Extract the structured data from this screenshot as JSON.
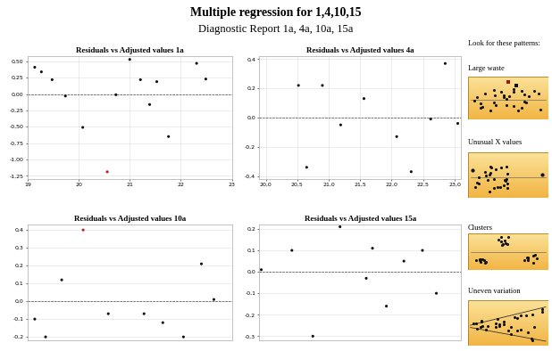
{
  "title": "Multiple regression for 1,4,10,15",
  "subtitle": "Diagnostic Report 1a, 4a, 10a, 15a",
  "chart_data": [
    {
      "type": "scatter",
      "title": "Residuals vs Adjusted values 1a",
      "x": [
        19.14,
        19.27,
        19.48,
        19.74,
        20.08,
        20.56,
        20.73,
        21.0,
        21.21,
        21.39,
        21.53,
        21.76,
        22.31,
        22.49
      ],
      "values": [
        0.41,
        0.34,
        0.22,
        -0.03,
        -0.51,
        -1.19,
        -0.01,
        0.53,
        0.22,
        -0.16,
        0.19,
        -0.65,
        0.47,
        0.23
      ],
      "colors": [
        "#111111",
        "#111111",
        "#111111",
        "#111111",
        "#111111",
        "#b22222",
        "#111111",
        "#111111",
        "#111111",
        "#111111",
        "#111111",
        "#111111",
        "#111111",
        "#111111"
      ],
      "xlim": [
        19,
        23
      ],
      "ylim": [
        -1.3,
        0.58
      ],
      "xticks": [
        19,
        20,
        21,
        22,
        23
      ],
      "yticks": [
        {
          "value": 0.5,
          "label": "0,50"
        },
        {
          "value": 0.25,
          "label": "0,25"
        },
        {
          "value": 0.0,
          "label": "0,00"
        },
        {
          "value": -0.25,
          "label": "-0,25"
        },
        {
          "value": -0.5,
          "label": "-0,50"
        },
        {
          "value": -0.75,
          "label": "-0,75"
        },
        {
          "value": -1.0,
          "label": "-1,00"
        },
        {
          "value": -1.25,
          "label": "-1,25"
        }
      ],
      "grid": true,
      "hline": 0
    },
    {
      "type": "scatter",
      "title": "Residuals vs Adjusted values 4a",
      "x": [
        20.52,
        20.65,
        20.9,
        21.19,
        21.56,
        22.08,
        22.31,
        22.62,
        22.85,
        23.05
      ],
      "values": [
        0.22,
        -0.34,
        0.22,
        -0.05,
        0.13,
        -0.13,
        -0.37,
        -0.01,
        0.37,
        -0.04
      ],
      "colors": [
        "#111111",
        "#111111",
        "#111111",
        "#111111",
        "#111111",
        "#111111",
        "#111111",
        "#111111",
        "#111111",
        "#111111"
      ],
      "xlim": [
        19.9,
        23.1
      ],
      "ylim": [
        -0.42,
        0.42
      ],
      "xticks": [
        {
          "value": 20.0,
          "label": "20,0"
        },
        {
          "value": 20.5,
          "label": "20,5"
        },
        {
          "value": 21.0,
          "label": "21,0"
        },
        {
          "value": 21.5,
          "label": "21,5"
        },
        {
          "value": 22.0,
          "label": "22,0"
        },
        {
          "value": 22.5,
          "label": "22,5"
        },
        {
          "value": 23.0,
          "label": "23,0"
        }
      ],
      "yticks": [
        {
          "value": 0.4,
          "label": "0,4"
        },
        {
          "value": 0.2,
          "label": "0,2"
        },
        {
          "value": 0.0,
          "label": "0,0"
        },
        {
          "value": -0.2,
          "label": "-0,2"
        },
        {
          "value": -0.4,
          "label": "-0,4"
        }
      ],
      "grid": true,
      "hline": 0
    },
    {
      "type": "scatter",
      "title": "Residuals vs Adjusted values 10a",
      "x": [
        0.35,
        0.88,
        1.67,
        2.72,
        3.95,
        5.7,
        6.62,
        7.63,
        8.51,
        9.12
      ],
      "values": [
        -0.1,
        -0.2,
        0.12,
        0.4,
        -0.07,
        -0.07,
        -0.12,
        -0.2,
        0.21,
        0.01
      ],
      "colors": [
        "#111111",
        "#111111",
        "#111111",
        "#b22222",
        "#111111",
        "#111111",
        "#111111",
        "#111111",
        "#111111",
        "#111111"
      ],
      "xlim": [
        0,
        10
      ],
      "ylim": [
        -0.22,
        0.43
      ],
      "yticks": [
        {
          "value": 0.4,
          "label": "0,4"
        },
        {
          "value": 0.3,
          "label": "0,3"
        },
        {
          "value": 0.2,
          "label": "0,2"
        },
        {
          "value": 0.1,
          "label": "0,1"
        },
        {
          "value": 0.0,
          "label": "0,0"
        },
        {
          "value": -0.1,
          "label": "-0,1"
        },
        {
          "value": -0.2,
          "label": "-0,2"
        }
      ],
      "tick_labels": "y",
      "grid": true,
      "hline": 0
    },
    {
      "type": "scatter",
      "title": "Residuals vs Adjusted values 15a",
      "x": [
        0.09,
        1.61,
        2.65,
        4.0,
        5.3,
        5.61,
        6.3,
        7.17,
        8.09,
        8.78
      ],
      "values": [
        0.01,
        0.1,
        -0.3,
        0.21,
        -0.03,
        0.11,
        -0.16,
        0.05,
        0.1,
        -0.1
      ],
      "colors": [
        "#111111",
        "#111111",
        "#111111",
        "#111111",
        "#111111",
        "#111111",
        "#111111",
        "#111111",
        "#111111",
        "#111111"
      ],
      "xlim": [
        0,
        10
      ],
      "ylim": [
        -0.32,
        0.22
      ],
      "yticks": [
        {
          "value": 0.2,
          "label": "0,2"
        },
        {
          "value": 0.1,
          "label": "0,1"
        },
        {
          "value": 0.0,
          "label": "0,0"
        },
        {
          "value": -0.1,
          "label": "-0,1"
        },
        {
          "value": -0.2,
          "label": "-0,2"
        },
        {
          "value": -0.3,
          "label": "-0,3"
        }
      ],
      "tick_labels": "y",
      "grid": true,
      "hline": 0
    }
  ],
  "patterns": {
    "heading": "Look for these patterns:",
    "items": [
      "Large waste",
      "Unusual X values",
      "Clusters",
      "Uneven variation"
    ]
  }
}
